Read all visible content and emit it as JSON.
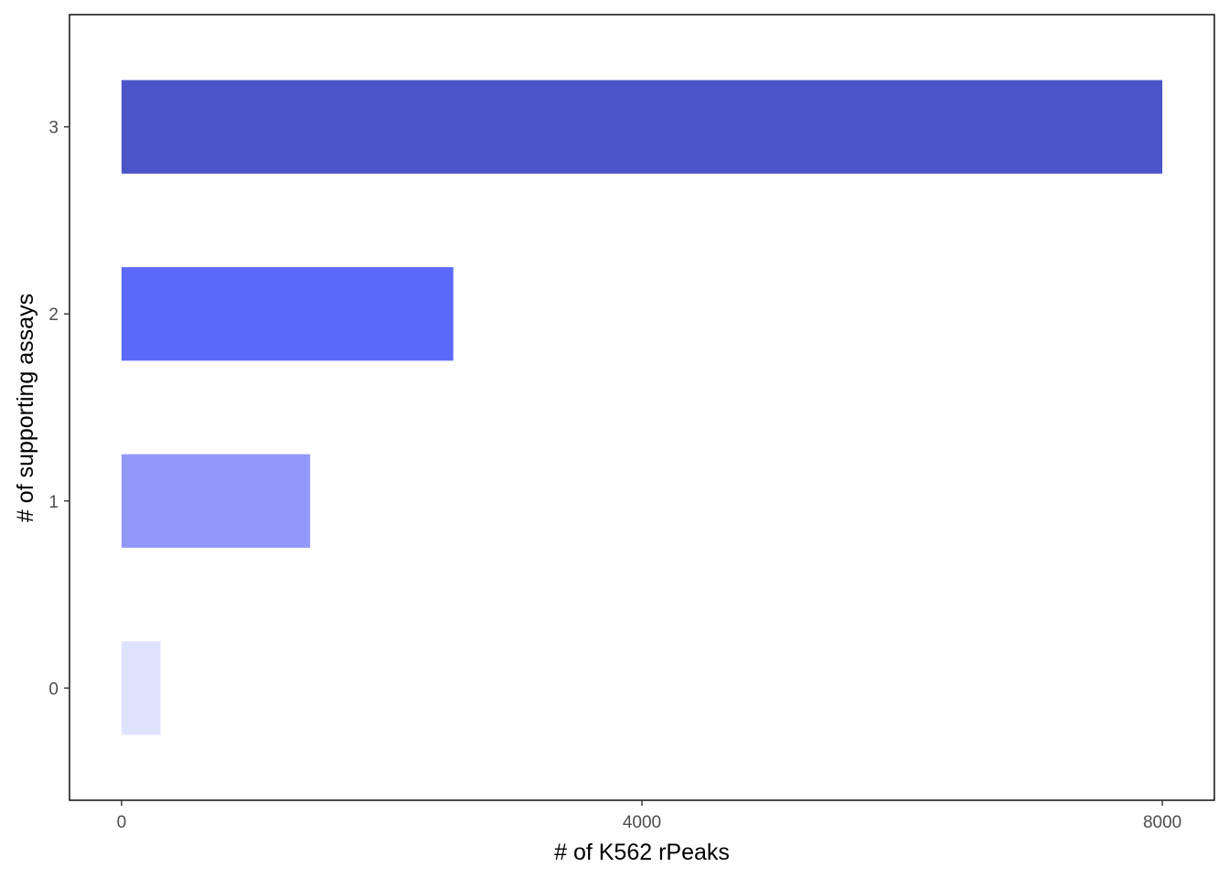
{
  "chart_data": {
    "type": "bar",
    "orientation": "horizontal",
    "categories": [
      "0",
      "1",
      "2",
      "3"
    ],
    "values": [
      300,
      1450,
      2550,
      8000
    ],
    "colors": [
      "#dfe2fd",
      "#9198fa",
      "#5b69fa",
      "#4b55c8"
    ],
    "xlabel": "# of K562 rPeaks",
    "ylabel": "# of supporting assays",
    "xlim": [
      -400,
      8400
    ],
    "xticks": [
      0,
      4000,
      8000
    ],
    "xtick_labels": [
      "0",
      "4000",
      "8000"
    ],
    "grid": false,
    "legend": "none"
  }
}
